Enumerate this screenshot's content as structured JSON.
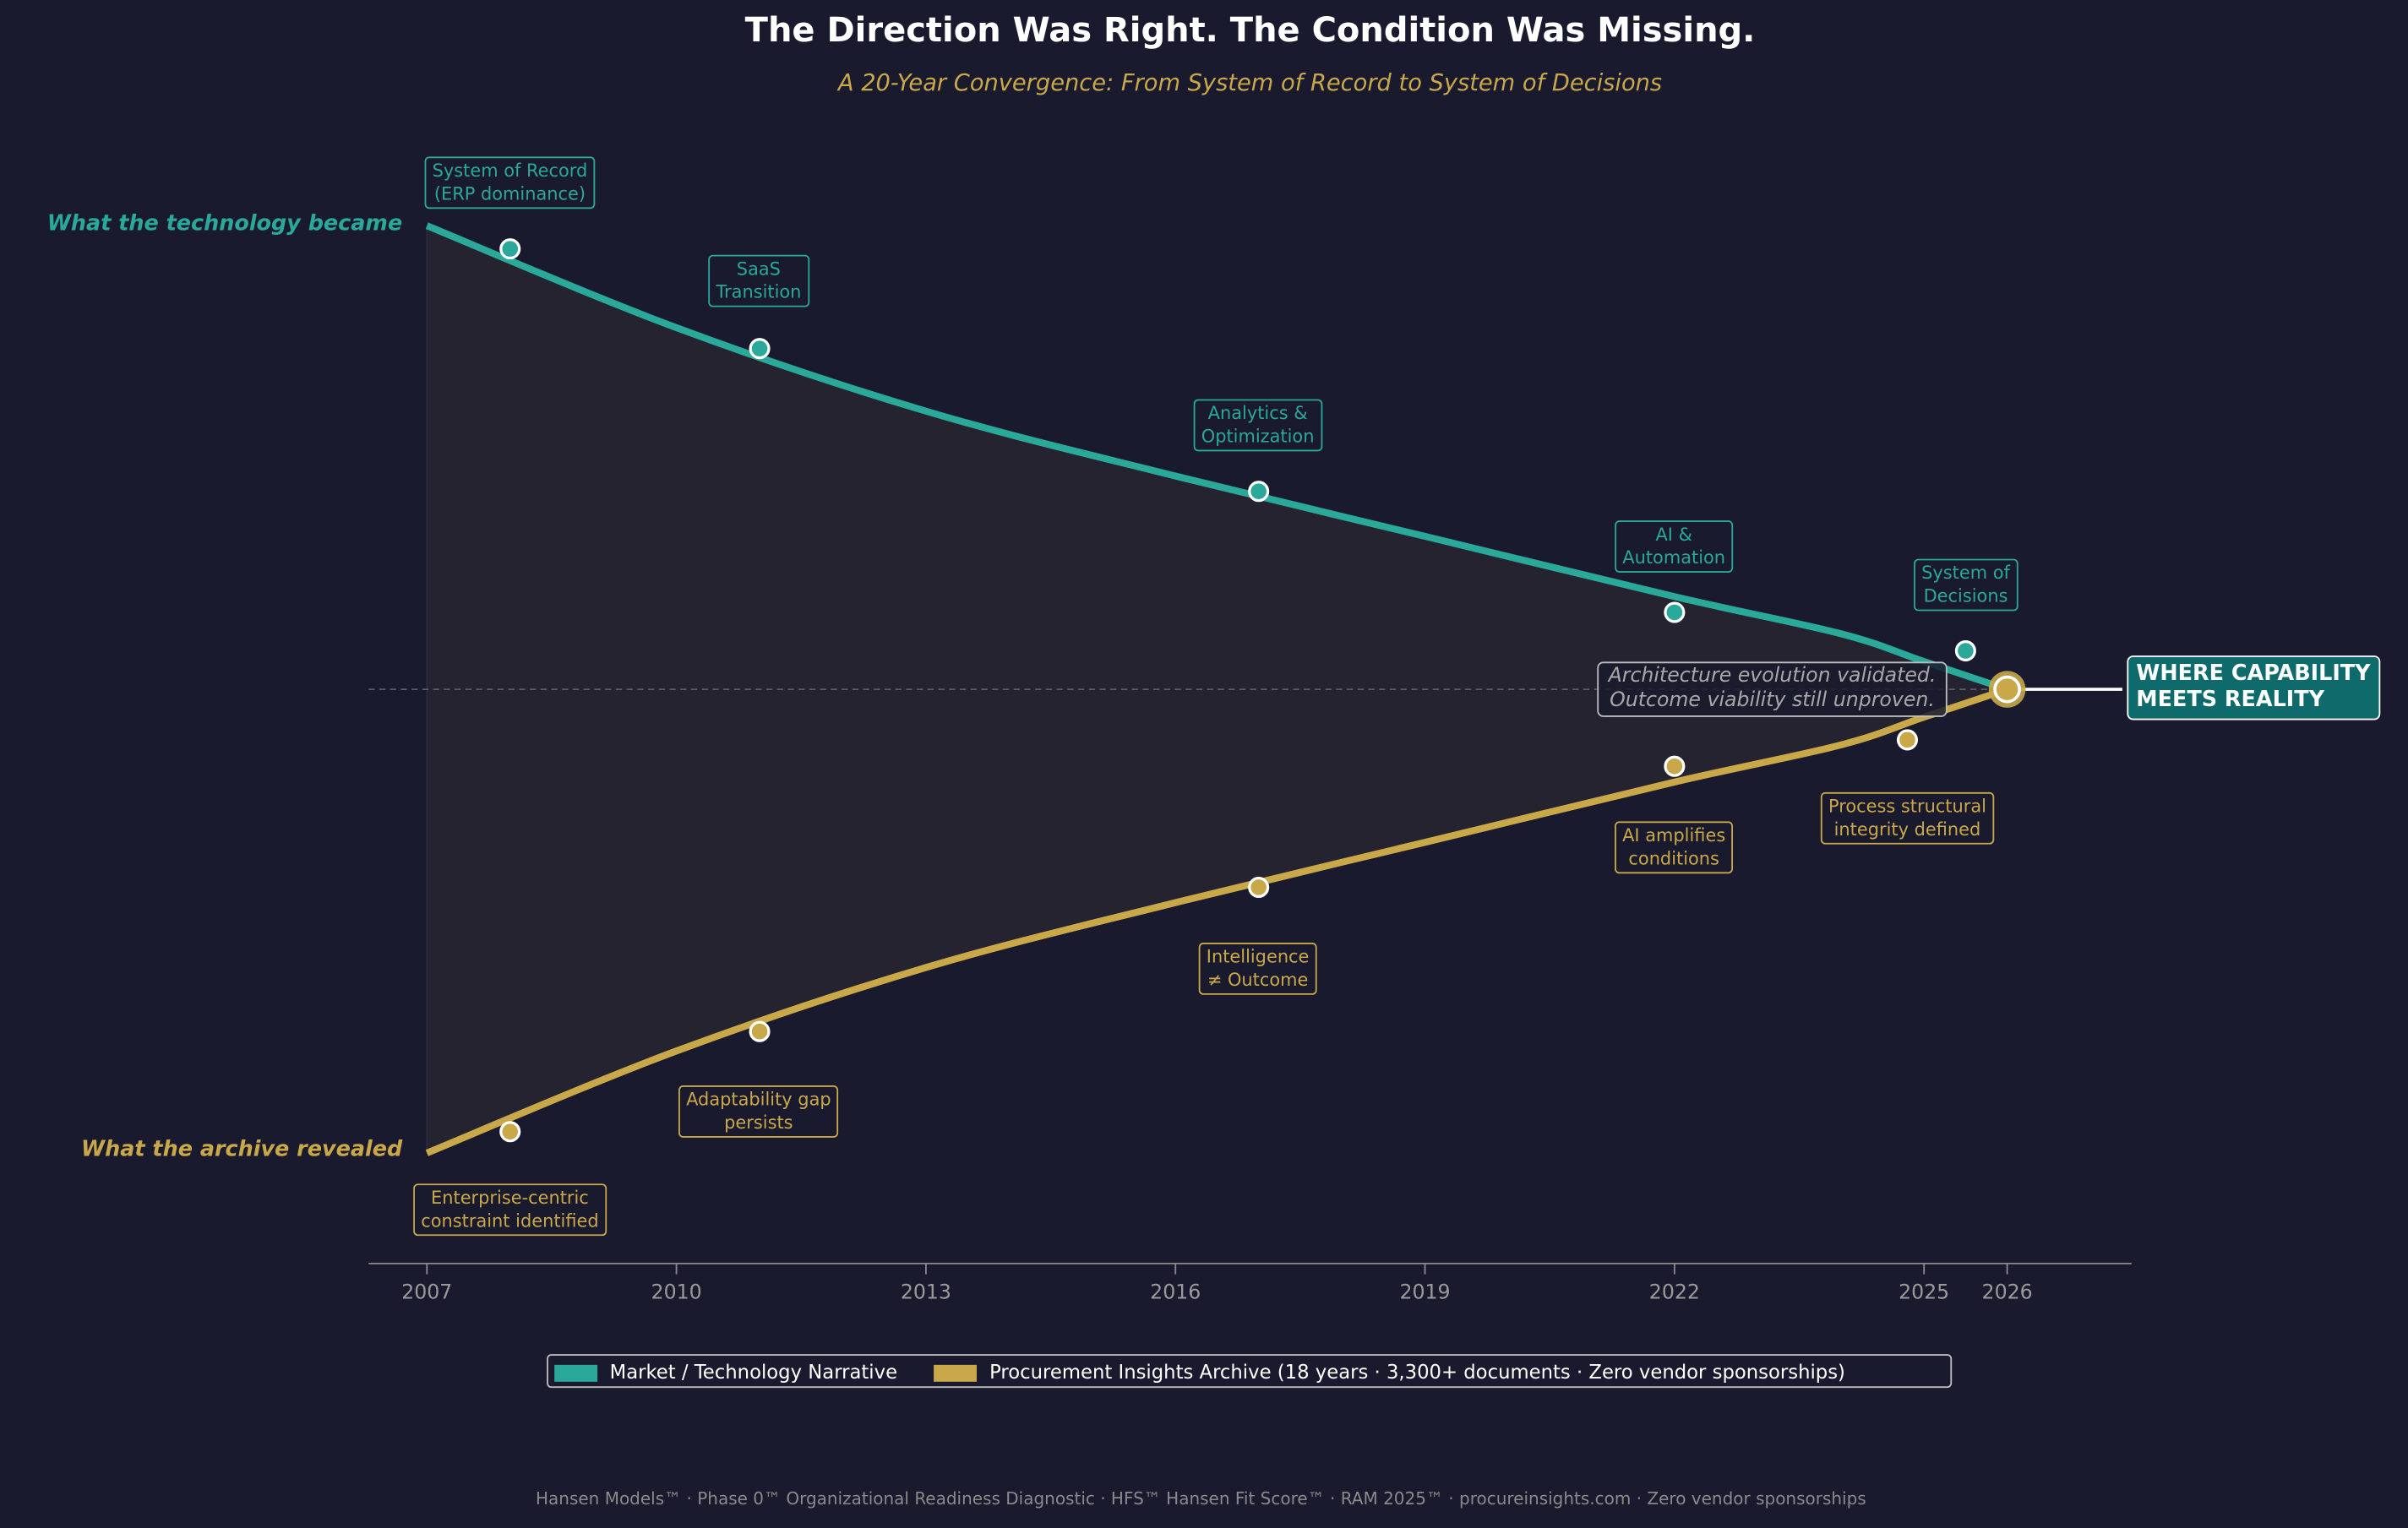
{
  "title": "The Direction Was Right. The Condition Was Missing.",
  "subtitle": "A 20-Year Convergence: From System of Record to System of Decisions",
  "side_labels": {
    "tech": "What the technology became",
    "archive": "What the archive revealed"
  },
  "annotation": {
    "line1": "Architecture evolution validated.",
    "line2": "Outcome viability still unproven."
  },
  "callout": {
    "line1": "WHERE CAPABILITY",
    "line2": "MEETS REALITY"
  },
  "legend": {
    "tech": "Market / Technology Narrative",
    "archive": "Procurement Insights Archive (18 years · 3,300+ documents · Zero vendor sponsorships)"
  },
  "footer": "Hansen Models™  ·  Phase 0™ Organizational Readiness Diagnostic  ·  HFS™ Hansen Fit Score™  ·  RAM 2025™  ·  procureinsights.com  ·  Zero vendor sponsorships",
  "colors": {
    "background": "#1a1a2e",
    "tech": "#2aa89a",
    "archive": "#c9a84a",
    "callout": "#0f6b6b",
    "fill": "#25232f"
  },
  "chart_data": {
    "type": "line",
    "title": "The Direction Was Right. The Condition Was Missing.",
    "xlabel": "",
    "ylabel": "",
    "xlim": [
      2006.3,
      2027.5
    ],
    "ylim": [
      -1.24,
      1.24
    ],
    "x_ticks": [
      2007,
      2010,
      2013,
      2016,
      2019,
      2022,
      2025,
      2026
    ],
    "grid": false,
    "legend_position": "bottom-center",
    "series": [
      {
        "name": "Market / Technology Narrative",
        "x": [
          2007,
          2010,
          2013,
          2016,
          2019,
          2022,
          2024,
          2025,
          2026
        ],
        "y": [
          1.0,
          0.78,
          0.6,
          0.46,
          0.33,
          0.2,
          0.12,
          0.06,
          0.0
        ]
      },
      {
        "name": "Procurement Insights Archive",
        "x": [
          2007,
          2010,
          2013,
          2016,
          2019,
          2022,
          2024,
          2025,
          2026
        ],
        "y": [
          -1.0,
          -0.78,
          -0.6,
          -0.46,
          -0.33,
          -0.2,
          -0.12,
          -0.06,
          0.0
        ]
      }
    ],
    "convergence_point": {
      "x": 2026,
      "y": 0
    },
    "tech_milestones": [
      {
        "x": 2008,
        "y": 0.95,
        "line1": "System of Record",
        "line2": "(ERP dominance)"
      },
      {
        "x": 2011,
        "y": 0.735,
        "line1": "SaaS",
        "line2": "Transition"
      },
      {
        "x": 2017,
        "y": 0.427,
        "line1": "Analytics &",
        "line2": "Optimization"
      },
      {
        "x": 2022,
        "y": 0.166,
        "line1": "AI &",
        "line2": "Automation"
      },
      {
        "x": 2025.5,
        "y": 0.083,
        "line1": "System of",
        "line2": "Decisions"
      }
    ],
    "archive_milestones": [
      {
        "x": 2008,
        "y": -0.954,
        "line1": "Enterprise-centric",
        "line2": "constraint identified"
      },
      {
        "x": 2011,
        "y": -0.738,
        "line1": "Adaptability gap",
        "line2": "persists"
      },
      {
        "x": 2017,
        "y": -0.427,
        "line1": "Intelligence",
        "line2": "≠ Outcome"
      },
      {
        "x": 2022,
        "y": -0.166,
        "line1": "AI amplifies",
        "line2": "conditions"
      },
      {
        "x": 2024.8,
        "y": -0.109,
        "line1": "Process structural",
        "line2": "integrity defined"
      }
    ]
  }
}
